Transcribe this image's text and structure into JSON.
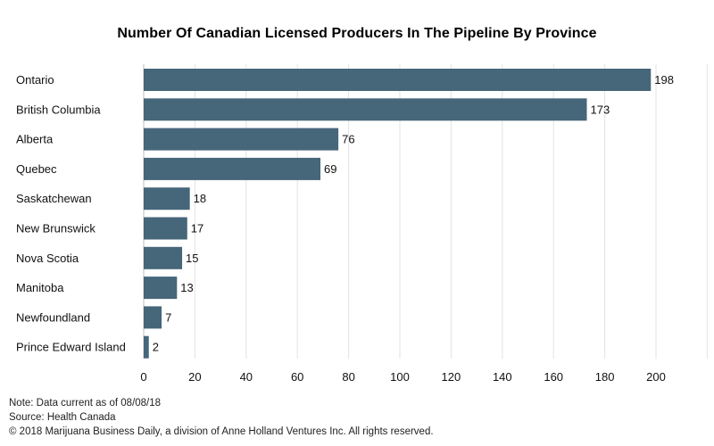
{
  "title": "Number Of Canadian Licensed Producers In The Pipeline By Province",
  "chart_data": {
    "type": "bar",
    "orientation": "horizontal",
    "title": "Number Of Canadian Licensed Producers In The Pipeline By Province",
    "categories": [
      "Ontario",
      "British Columbia",
      "Alberta",
      "Quebec",
      "Saskatchewan",
      "New Brunswick",
      "Nova Scotia",
      "Manitoba",
      "Newfoundland",
      "Prince Edward Island"
    ],
    "values": [
      198,
      173,
      76,
      69,
      18,
      17,
      15,
      13,
      7,
      2
    ],
    "xlim": [
      0,
      220
    ],
    "xticks": [
      0,
      20,
      40,
      60,
      80,
      100,
      120,
      140,
      160,
      180,
      200
    ],
    "xlabel": "",
    "ylabel": "",
    "grid": "vertical",
    "bar_color": "#46667a",
    "data_labels": true
  },
  "footer": {
    "note": "Note: Data current as of 08/08/18",
    "source": "Source: Health Canada",
    "copyright": "© 2018 Marijuana Business Daily, a division of Anne Holland Ventures Inc. All rights reserved."
  }
}
